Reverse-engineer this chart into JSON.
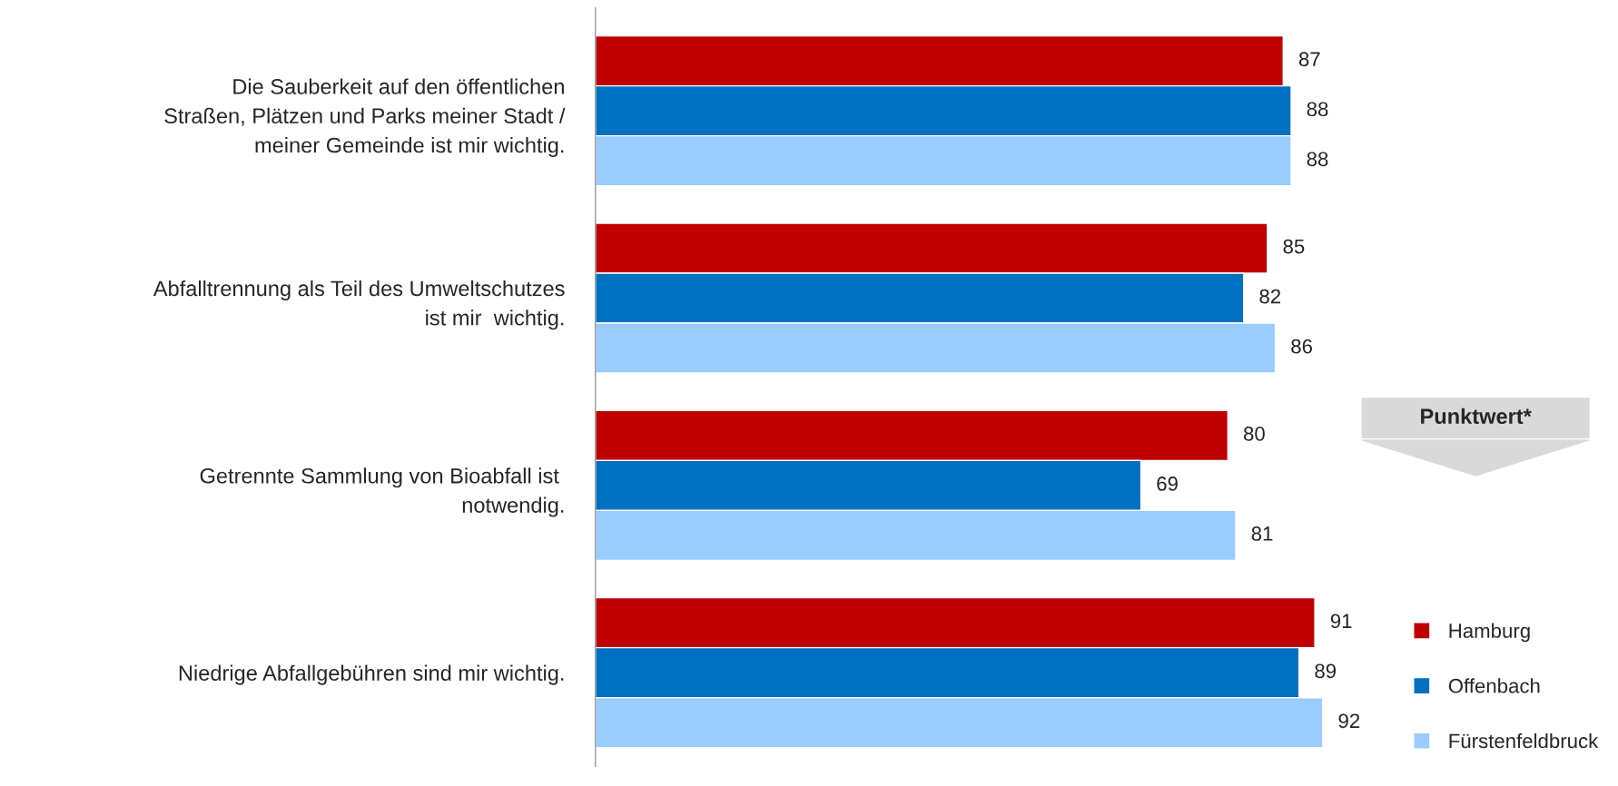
{
  "chart_data": {
    "type": "bar",
    "orientation": "horizontal",
    "categories": [
      "Die Sauberkeit auf den öffentlichen\nStraßen, Plätzen und Parks meiner Stadt /\nmeiner Gemeinde ist mir wichtig.",
      "Abfalltrennung als Teil des Umweltschutzes\nist mir  wichtig.",
      "Getrennte Sammlung von Bioabfall ist \nnotwendig.",
      "Niedrige Abfallgebühren sind mir wichtig."
    ],
    "series": [
      {
        "name": "Hamburg",
        "color": "#c00000",
        "values": [
          87,
          85,
          80,
          91
        ]
      },
      {
        "name": "Offenbach",
        "color": "#0070c0",
        "values": [
          88,
          82,
          69,
          89
        ]
      },
      {
        "name": "Fürstenfeldbruck",
        "color": "#99ccff",
        "values": [
          88,
          86,
          81,
          92
        ]
      }
    ],
    "tick_labels": "y",
    "data_labels": true,
    "legend": "bottom right",
    "annotations": [
      "Punktwert*"
    ]
  }
}
